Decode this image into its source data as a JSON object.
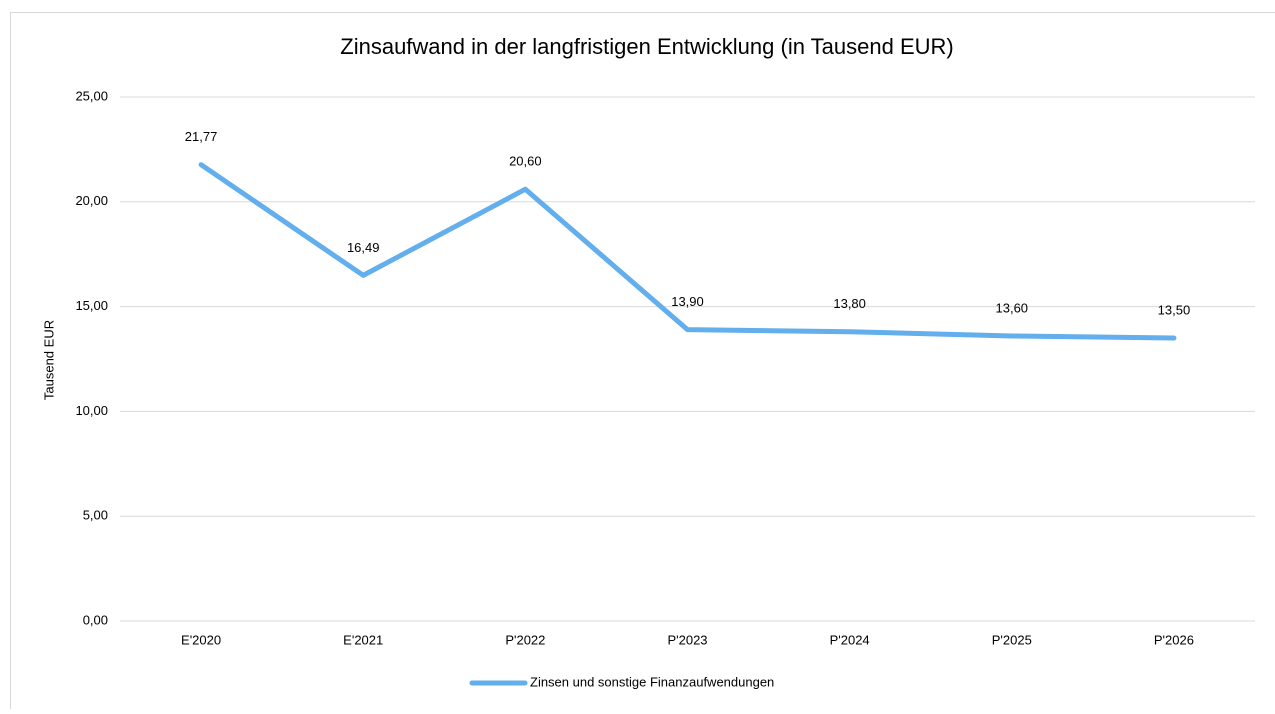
{
  "chart_data": {
    "type": "line",
    "title": "Zinsaufwand in der langfristigen Entwicklung (in Tausend EUR)",
    "y_axis_label": "Tausend EUR",
    "categories": [
      "E'2020",
      "E'2021",
      "P'2022",
      "P'2023",
      "P'2024",
      "P'2025",
      "P'2026"
    ],
    "series": [
      {
        "name": "Zinsen und sonstige Finanzaufwendungen",
        "color": "#63aeec",
        "values": [
          21.77,
          16.49,
          20.6,
          13.9,
          13.8,
          13.6,
          13.5
        ],
        "value_labels": [
          "21,77",
          "16,49",
          "20,60",
          "13,90",
          "13,80",
          "13,60",
          "13,50"
        ]
      }
    ],
    "ylim": [
      0,
      25
    ],
    "yticks": [
      {
        "value": 0,
        "label": "0,00"
      },
      {
        "value": 5,
        "label": "5,00"
      },
      {
        "value": 10,
        "label": "10,00"
      },
      {
        "value": 15,
        "label": "15,00"
      },
      {
        "value": 20,
        "label": "20,00"
      },
      {
        "value": 25,
        "label": "25,00"
      }
    ],
    "grid": true,
    "legend": "bottom"
  }
}
